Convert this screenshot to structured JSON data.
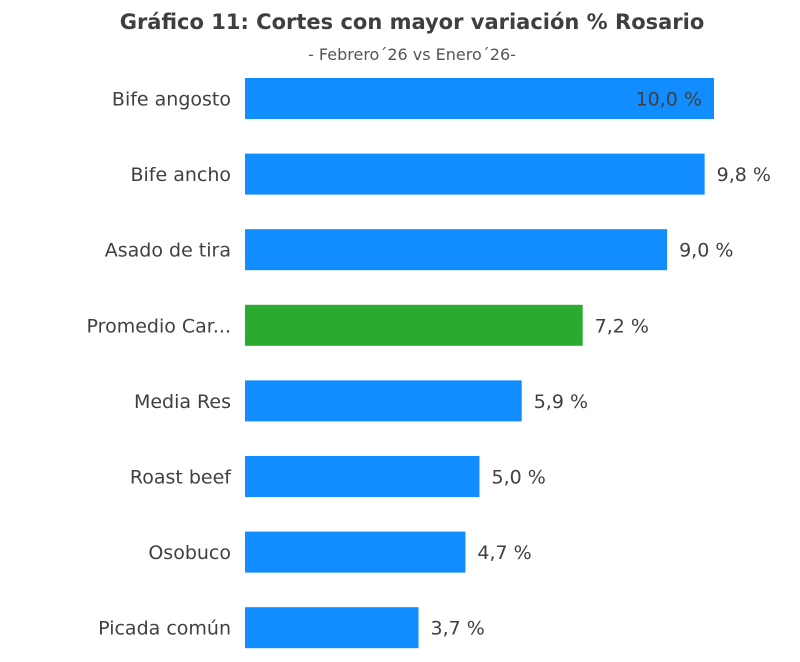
{
  "chart_data": {
    "type": "bar",
    "orientation": "horizontal",
    "title": "Gráfico 11: Cortes con mayor variación % Rosario",
    "subtitle": "- Febrero´26 vs Enero´26-",
    "categories": [
      "Bife angosto",
      "Bife ancho",
      "Asado de tira",
      "Promedio Car...",
      "Media Res",
      "Roast beef",
      "Osobuco",
      "Picada común"
    ],
    "values": [
      10.0,
      9.8,
      9.0,
      7.2,
      5.9,
      5.0,
      4.7,
      3.7
    ],
    "labels": [
      "10,0 %",
      "9,8 %",
      "9,0 %",
      "7,2 %",
      "5,9 %",
      "5,0 %",
      "4,7 %",
      "3,7 %"
    ],
    "xlim": [
      0,
      10
    ],
    "unit": "%",
    "grid": false,
    "colors": {
      "default": "#118DFF",
      "highlight": "#2AAA2E"
    },
    "highlight_index": 3
  }
}
